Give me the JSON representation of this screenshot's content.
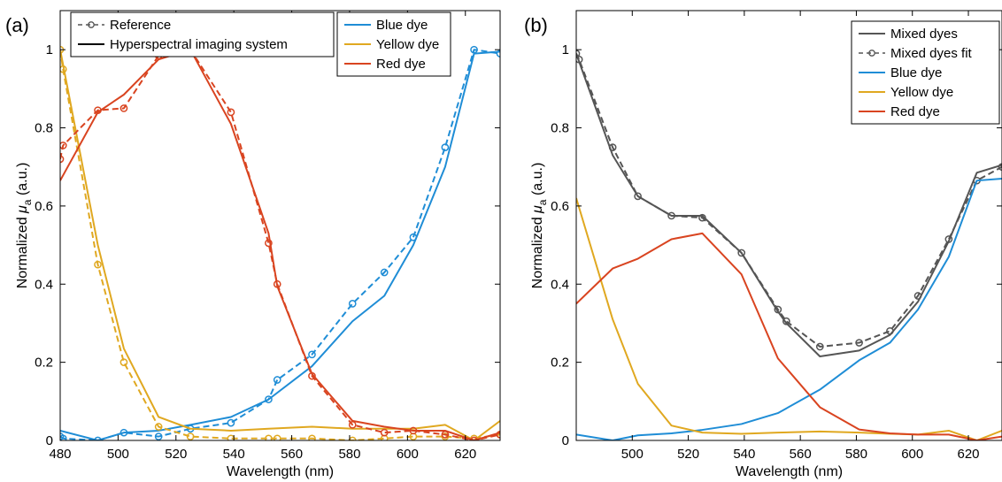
{
  "chart_data": [
    {
      "type": "line",
      "panel_label": "(a)",
      "xlabel": "Wavelength (nm)",
      "ylabel": "Normalized μa (a.u.)",
      "ylabel_main": "Normalized ",
      "ylabel_mu": "μ",
      "ylabel_sub": "a",
      "ylabel_unit": " (a.u.)",
      "xlim": [
        480,
        632
      ],
      "ylim": [
        0,
        1.1
      ],
      "xticks": [
        480,
        500,
        520,
        540,
        560,
        580,
        600,
        620
      ],
      "yticks": [
        0,
        0.2,
        0.4,
        0.6,
        0.8,
        1
      ],
      "ytick_labels": [
        "0",
        "0.2",
        "0.4",
        "0.6",
        "0.8",
        "1"
      ],
      "grid": false,
      "legend_style": {
        "placement": "top-center",
        "entries": [
          {
            "label": "Reference",
            "style": "dashed-marker",
            "color": "#555555"
          },
          {
            "label": "Hyperspectral imaging system",
            "style": "solid",
            "color": "#000000"
          }
        ]
      },
      "legend_color": {
        "placement": "top-center-right",
        "entries": [
          {
            "label": "Blue dye",
            "color": "#1f8dd6"
          },
          {
            "label": "Yellow dye",
            "color": "#e0a820"
          },
          {
            "label": "Red dye",
            "color": "#d94420"
          }
        ]
      },
      "series": [
        {
          "name": "Blue dye",
          "kind": "reference",
          "color": "#1f8dd6",
          "x": [
            480,
            481,
            493,
            502,
            514,
            525,
            539,
            552,
            555,
            567,
            581,
            592,
            602,
            613,
            623,
            632
          ],
          "y": [
            0.01,
            0.005,
            0,
            0.02,
            0.01,
            0.03,
            0.045,
            0.105,
            0.155,
            0.22,
            0.35,
            0.43,
            0.52,
            0.75,
            1.0,
            0.99
          ]
        },
        {
          "name": "Blue dye",
          "kind": "hsi",
          "color": "#1f8dd6",
          "x": [
            480,
            493,
            502,
            514,
            525,
            539,
            552,
            567,
            581,
            592,
            602,
            613,
            623,
            632
          ],
          "y": [
            0.025,
            0,
            0.02,
            0.025,
            0.04,
            0.06,
            0.105,
            0.19,
            0.305,
            0.37,
            0.5,
            0.7,
            0.99,
            0.995
          ]
        },
        {
          "name": "Yellow dye",
          "kind": "reference",
          "color": "#e0a820",
          "x": [
            480,
            481,
            493,
            502,
            514,
            525,
            539,
            552,
            555,
            567,
            581,
            592,
            602,
            613,
            623,
            632
          ],
          "y": [
            1.0,
            0.95,
            0.45,
            0.2,
            0.035,
            0.01,
            0.005,
            0.005,
            0.005,
            0.005,
            0,
            0.005,
            0.01,
            0.01,
            0.005,
            0.015
          ]
        },
        {
          "name": "Yellow dye",
          "kind": "hsi",
          "color": "#e0a820",
          "x": [
            480,
            493,
            502,
            514,
            525,
            539,
            552,
            567,
            581,
            592,
            602,
            613,
            623,
            632
          ],
          "y": [
            1.0,
            0.5,
            0.235,
            0.06,
            0.03,
            0.025,
            0.03,
            0.035,
            0.03,
            0.03,
            0.03,
            0.04,
            0,
            0.05
          ]
        },
        {
          "name": "Red dye",
          "kind": "reference",
          "color": "#d94420",
          "x": [
            480,
            481,
            493,
            502,
            514,
            525,
            539,
            552,
            555,
            567,
            581,
            592,
            602,
            613,
            623,
            632
          ],
          "y": [
            0.72,
            0.755,
            0.845,
            0.85,
            0.985,
            1.0,
            0.84,
            0.505,
            0.4,
            0.165,
            0.04,
            0.02,
            0.025,
            0.015,
            0,
            0.015
          ]
        },
        {
          "name": "Red dye",
          "kind": "hsi",
          "color": "#d94420",
          "x": [
            480,
            493,
            502,
            514,
            525,
            539,
            552,
            555,
            567,
            581,
            592,
            602,
            613,
            623,
            632
          ],
          "y": [
            0.665,
            0.84,
            0.885,
            0.975,
            1.0,
            0.81,
            0.53,
            0.395,
            0.17,
            0.05,
            0.035,
            0.025,
            0.025,
            0,
            0.02
          ]
        }
      ]
    },
    {
      "type": "line",
      "panel_label": "(b)",
      "xlabel": "Wavelength (nm)",
      "ylabel": "Normalized μa (a.u.)",
      "ylabel_main": "Normalized ",
      "ylabel_mu": "μ",
      "ylabel_sub": "a",
      "ylabel_unit": " (a.u.)",
      "xlim": [
        480,
        632
      ],
      "ylim": [
        0,
        1.1
      ],
      "xticks": [
        500,
        520,
        540,
        560,
        580,
        600,
        620
      ],
      "yticks": [
        0,
        0.2,
        0.4,
        0.6,
        0.8,
        1
      ],
      "ytick_labels": [
        "0",
        "0.2",
        "0.4",
        "0.6",
        "0.8",
        "1"
      ],
      "grid": false,
      "legend": {
        "placement": "top-right",
        "entries": [
          {
            "label": "Mixed dyes",
            "style": "solid",
            "color": "#555555"
          },
          {
            "label": "Mixed dyes fit",
            "style": "dashed-marker",
            "color": "#555555"
          },
          {
            "label": "Blue dye",
            "style": "solid",
            "color": "#1f8dd6"
          },
          {
            "label": "Yellow dye",
            "style": "solid",
            "color": "#e0a820"
          },
          {
            "label": "Red dye",
            "style": "solid",
            "color": "#d94420"
          }
        ]
      },
      "series": [
        {
          "name": "Mixed dyes",
          "kind": "solid",
          "color": "#555555",
          "x": [
            480,
            493,
            502,
            514,
            525,
            539,
            552,
            555,
            567,
            581,
            592,
            602,
            613,
            623,
            632
          ],
          "y": [
            0.99,
            0.73,
            0.625,
            0.575,
            0.575,
            0.48,
            0.33,
            0.3,
            0.215,
            0.23,
            0.27,
            0.355,
            0.51,
            0.685,
            0.705
          ]
        },
        {
          "name": "Mixed dyes fit",
          "kind": "dashed-marker",
          "color": "#555555",
          "x": [
            480,
            481,
            493,
            502,
            514,
            525,
            539,
            552,
            555,
            567,
            581,
            592,
            602,
            613,
            623,
            632
          ],
          "y": [
            0.99,
            0.975,
            0.75,
            0.625,
            0.575,
            0.57,
            0.48,
            0.335,
            0.305,
            0.24,
            0.25,
            0.28,
            0.37,
            0.515,
            0.665,
            0.7
          ]
        },
        {
          "name": "Blue dye",
          "kind": "solid",
          "color": "#1f8dd6",
          "x": [
            480,
            493,
            502,
            514,
            525,
            539,
            552,
            567,
            581,
            592,
            602,
            613,
            623,
            632
          ],
          "y": [
            0.015,
            0,
            0.013,
            0.018,
            0.027,
            0.042,
            0.07,
            0.13,
            0.205,
            0.25,
            0.335,
            0.47,
            0.665,
            0.67
          ]
        },
        {
          "name": "Yellow dye",
          "kind": "solid",
          "color": "#e0a820",
          "x": [
            480,
            493,
            502,
            514,
            525,
            539,
            552,
            567,
            581,
            592,
            602,
            613,
            623,
            632
          ],
          "y": [
            0.62,
            0.31,
            0.145,
            0.038,
            0.02,
            0.017,
            0.02,
            0.023,
            0.02,
            0.017,
            0.015,
            0.025,
            0,
            0.025
          ]
        },
        {
          "name": "Red dye",
          "kind": "solid",
          "color": "#d94420",
          "x": [
            480,
            493,
            502,
            514,
            525,
            539,
            552,
            567,
            581,
            592,
            602,
            613,
            623,
            632
          ],
          "y": [
            0.35,
            0.44,
            0.465,
            0.515,
            0.53,
            0.425,
            0.21,
            0.085,
            0.028,
            0.018,
            0.015,
            0.015,
            0,
            0.01
          ]
        }
      ]
    }
  ]
}
